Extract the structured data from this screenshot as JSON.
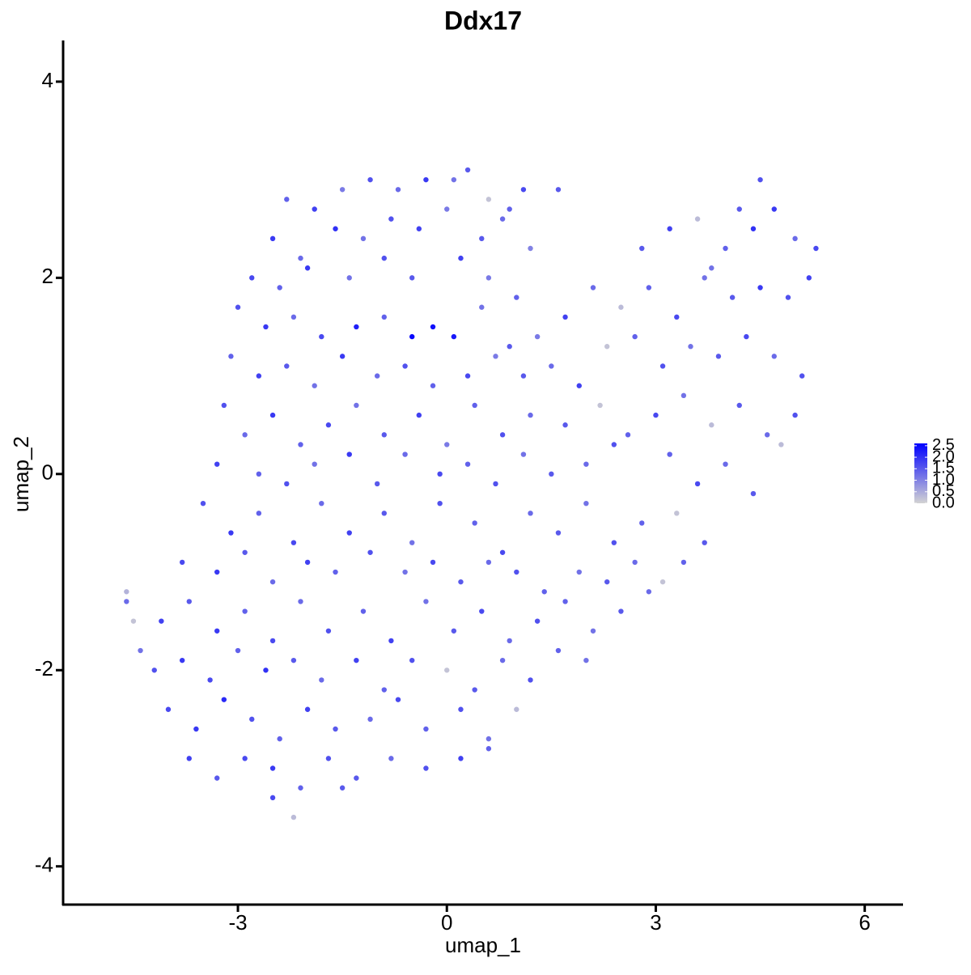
{
  "chart_data": {
    "type": "scatter",
    "title": "Ddx17",
    "x_label": "umap_1",
    "y_label": "umap_2",
    "xlim": [
      -5.51,
      6.55
    ],
    "ylim": [
      -4.39,
      4.42
    ],
    "xticks": [
      -3,
      0,
      3,
      6
    ],
    "yticks": [
      -4,
      -2,
      0,
      2,
      4
    ],
    "low_color": "#d3d3d3",
    "high_color": "#0000ff",
    "colorlim": [
      0,
      2.6
    ],
    "colorticks": [
      {
        "value": 0,
        "label": "0.0"
      },
      0.5,
      {
        "value": 1,
        "label": "1.0"
      },
      1.5,
      {
        "value": 2,
        "label": "2.0"
      },
      2.5
    ],
    "points": [
      [
        -2.3,
        2.8,
        1.4
      ],
      [
        -1.9,
        2.7,
        1.8
      ],
      [
        -1.5,
        2.9,
        1.1
      ],
      [
        -1.1,
        3.0,
        1.6
      ],
      [
        -0.7,
        2.9,
        1.3
      ],
      [
        -0.3,
        3.0,
        1.9
      ],
      [
        0.1,
        3.0,
        1.2
      ],
      [
        0.3,
        3.1,
        1.5
      ],
      [
        0.6,
        2.8,
        0.2
      ],
      [
        0.9,
        2.7,
        1.4
      ],
      [
        1.1,
        2.9,
        1.7
      ],
      [
        1.6,
        2.9,
        1.5
      ],
      [
        -2.5,
        2.4,
        1.9
      ],
      [
        -2.1,
        2.2,
        1.3
      ],
      [
        -1.6,
        2.5,
        2.0
      ],
      [
        -1.2,
        2.4,
        1.2
      ],
      [
        -0.8,
        2.6,
        1.6
      ],
      [
        -0.4,
        2.5,
        1.8
      ],
      [
        0.0,
        2.7,
        1.1
      ],
      [
        0.5,
        2.4,
        1.5
      ],
      [
        0.8,
        2.6,
        1.3
      ],
      [
        1.2,
        2.3,
        1.0
      ],
      [
        -2.8,
        2.0,
        1.7
      ],
      [
        -2.4,
        1.9,
        1.4
      ],
      [
        -2.0,
        2.1,
        1.9
      ],
      [
        -1.4,
        2.0,
        1.2
      ],
      [
        -0.9,
        2.2,
        1.6
      ],
      [
        -0.5,
        2.0,
        1.5
      ],
      [
        0.2,
        2.2,
        1.8
      ],
      [
        0.6,
        2.0,
        1.1
      ],
      [
        1.0,
        1.8,
        1.4
      ],
      [
        -3.0,
        1.7,
        1.6
      ],
      [
        -2.6,
        1.5,
        1.9
      ],
      [
        -2.2,
        1.6,
        1.3
      ],
      [
        -1.8,
        1.4,
        1.7
      ],
      [
        -1.3,
        1.5,
        2.2
      ],
      [
        -0.9,
        1.6,
        1.4
      ],
      [
        -0.5,
        1.4,
        2.5
      ],
      [
        -0.2,
        1.5,
        2.4
      ],
      [
        0.1,
        1.4,
        2.3
      ],
      [
        0.5,
        1.7,
        1.2
      ],
      [
        0.9,
        1.3,
        1.5
      ],
      [
        1.3,
        1.4,
        1.1
      ],
      [
        1.7,
        1.6,
        1.8
      ],
      [
        2.1,
        1.9,
        1.3
      ],
      [
        2.5,
        1.7,
        0.3
      ],
      [
        2.9,
        1.9,
        1.4
      ],
      [
        3.3,
        1.6,
        1.7
      ],
      [
        3.7,
        2.0,
        1.2
      ],
      [
        4.1,
        1.8,
        1.5
      ],
      [
        4.5,
        1.9,
        1.9
      ],
      [
        4.9,
        1.8,
        1.6
      ],
      [
        5.2,
        2.0,
        1.8
      ],
      [
        -3.1,
        1.2,
        1.4
      ],
      [
        -2.7,
        1.0,
        1.8
      ],
      [
        -2.3,
        1.1,
        1.5
      ],
      [
        -1.9,
        0.9,
        1.2
      ],
      [
        -1.5,
        1.2,
        1.9
      ],
      [
        -1.0,
        1.0,
        1.3
      ],
      [
        -0.6,
        1.1,
        1.6
      ],
      [
        -0.2,
        0.9,
        1.4
      ],
      [
        0.3,
        1.0,
        1.7
      ],
      [
        0.7,
        1.2,
        1.1
      ],
      [
        1.1,
        1.0,
        1.5
      ],
      [
        1.5,
        1.1,
        1.3
      ],
      [
        1.9,
        0.9,
        1.8
      ],
      [
        2.3,
        1.3,
        0.2
      ],
      [
        2.7,
        1.4,
        1.4
      ],
      [
        3.1,
        1.1,
        1.6
      ],
      [
        3.5,
        1.3,
        1.2
      ],
      [
        3.9,
        1.2,
        1.5
      ],
      [
        4.3,
        1.4,
        1.7
      ],
      [
        4.7,
        1.2,
        1.3
      ],
      [
        5.1,
        1.0,
        1.6
      ],
      [
        2.8,
        2.3,
        1.5
      ],
      [
        3.2,
        2.5,
        1.8
      ],
      [
        3.6,
        2.6,
        0.3
      ],
      [
        4.0,
        2.3,
        1.4
      ],
      [
        4.4,
        2.5,
        2.0
      ],
      [
        4.5,
        3.0,
        1.6
      ],
      [
        4.7,
        2.7,
        1.9
      ],
      [
        5.0,
        2.4,
        1.3
      ],
      [
        5.3,
        2.3,
        1.7
      ],
      [
        4.2,
        2.7,
        1.5
      ],
      [
        3.8,
        2.1,
        1.2
      ],
      [
        -3.2,
        0.7,
        1.6
      ],
      [
        -2.9,
        0.4,
        1.3
      ],
      [
        -2.5,
        0.6,
        1.9
      ],
      [
        -2.1,
        0.3,
        1.4
      ],
      [
        -1.7,
        0.5,
        1.7
      ],
      [
        -1.3,
        0.7,
        1.2
      ],
      [
        -0.9,
        0.4,
        1.5
      ],
      [
        -0.4,
        0.6,
        1.8
      ],
      [
        0.0,
        0.3,
        1.1
      ],
      [
        0.4,
        0.7,
        1.4
      ],
      [
        0.8,
        0.4,
        1.6
      ],
      [
        1.2,
        0.6,
        1.3
      ],
      [
        1.7,
        0.5,
        1.5
      ],
      [
        2.2,
        0.7,
        0.2
      ],
      [
        2.6,
        0.4,
        1.4
      ],
      [
        3.0,
        0.6,
        1.7
      ],
      [
        3.4,
        0.8,
        1.2
      ],
      [
        3.8,
        0.5,
        0.3
      ],
      [
        4.2,
        0.7,
        1.5
      ],
      [
        4.6,
        0.4,
        1.3
      ],
      [
        5.0,
        0.6,
        1.6
      ],
      [
        -3.3,
        0.1,
        1.8
      ],
      [
        -2.7,
        0.0,
        1.4
      ],
      [
        -2.3,
        -0.1,
        1.6
      ],
      [
        -1.9,
        0.1,
        1.2
      ],
      [
        -1.4,
        0.2,
        1.9
      ],
      [
        -1.0,
        -0.1,
        1.5
      ],
      [
        -0.6,
        0.2,
        1.3
      ],
      [
        -0.1,
        0.0,
        1.7
      ],
      [
        0.3,
        0.1,
        1.4
      ],
      [
        0.7,
        -0.1,
        1.6
      ],
      [
        1.1,
        0.2,
        1.2
      ],
      [
        1.5,
        0.0,
        1.5
      ],
      [
        2.0,
        0.1,
        1.3
      ],
      [
        2.4,
        0.3,
        1.6
      ],
      [
        3.2,
        0.2,
        1.4
      ],
      [
        3.6,
        -0.1,
        1.7
      ],
      [
        4.0,
        0.1,
        1.3
      ],
      [
        4.4,
        -0.2,
        1.5
      ],
      [
        4.8,
        0.3,
        0.3
      ],
      [
        -3.5,
        -0.3,
        1.6
      ],
      [
        -3.1,
        -0.6,
        1.9
      ],
      [
        -2.7,
        -0.4,
        1.4
      ],
      [
        -2.2,
        -0.7,
        1.7
      ],
      [
        -1.8,
        -0.3,
        1.3
      ],
      [
        -1.4,
        -0.6,
        1.8
      ],
      [
        -0.9,
        -0.4,
        1.5
      ],
      [
        -0.5,
        -0.7,
        1.2
      ],
      [
        -0.1,
        -0.3,
        1.6
      ],
      [
        0.4,
        -0.5,
        1.4
      ],
      [
        0.8,
        -0.8,
        1.7
      ],
      [
        1.2,
        -0.4,
        1.3
      ],
      [
        1.6,
        -0.6,
        1.5
      ],
      [
        2.0,
        -0.3,
        1.2
      ],
      [
        2.4,
        -0.7,
        1.6
      ],
      [
        2.8,
        -0.5,
        1.4
      ],
      [
        3.3,
        -0.4,
        0.2
      ],
      [
        3.7,
        -0.7,
        1.5
      ],
      [
        -3.8,
        -0.9,
        1.7
      ],
      [
        -3.3,
        -1.0,
        1.9
      ],
      [
        -2.9,
        -0.8,
        1.5
      ],
      [
        -2.5,
        -1.1,
        1.3
      ],
      [
        -2.0,
        -0.9,
        1.8
      ],
      [
        -1.6,
        -1.0,
        1.4
      ],
      [
        -1.1,
        -0.8,
        1.6
      ],
      [
        -0.6,
        -1.0,
        1.2
      ],
      [
        -0.2,
        -0.9,
        1.7
      ],
      [
        0.2,
        -1.1,
        1.5
      ],
      [
        0.6,
        -0.9,
        1.3
      ],
      [
        1.0,
        -1.0,
        1.6
      ],
      [
        1.4,
        -1.2,
        1.4
      ],
      [
        1.9,
        -1.0,
        1.2
      ],
      [
        2.3,
        -1.1,
        1.5
      ],
      [
        2.7,
        -0.9,
        1.3
      ],
      [
        3.1,
        -1.1,
        0.2
      ],
      [
        3.4,
        -0.9,
        1.4
      ],
      [
        -4.1,
        -1.5,
        1.8
      ],
      [
        -3.7,
        -1.3,
        1.5
      ],
      [
        -3.3,
        -1.6,
        1.9
      ],
      [
        -2.9,
        -1.4,
        1.4
      ],
      [
        -2.5,
        -1.7,
        1.7
      ],
      [
        -2.1,
        -1.3,
        1.3
      ],
      [
        -1.7,
        -1.6,
        1.6
      ],
      [
        -1.2,
        -1.4,
        1.4
      ],
      [
        -0.8,
        -1.7,
        1.8
      ],
      [
        -0.3,
        -1.3,
        1.2
      ],
      [
        0.1,
        -1.6,
        1.5
      ],
      [
        0.5,
        -1.4,
        1.7
      ],
      [
        0.9,
        -1.7,
        1.3
      ],
      [
        1.3,
        -1.5,
        1.6
      ],
      [
        1.7,
        -1.3,
        1.4
      ],
      [
        2.1,
        -1.6,
        1.2
      ],
      [
        2.5,
        -1.4,
        1.5
      ],
      [
        2.9,
        -1.2,
        1.3
      ],
      [
        -4.2,
        -2.0,
        1.6
      ],
      [
        -3.8,
        -1.9,
        1.9
      ],
      [
        -3.4,
        -2.1,
        1.7
      ],
      [
        -3.0,
        -1.8,
        1.4
      ],
      [
        -2.6,
        -2.0,
        2.0
      ],
      [
        -2.2,
        -1.9,
        1.5
      ],
      [
        -1.8,
        -2.1,
        1.3
      ],
      [
        -1.3,
        -1.9,
        1.8
      ],
      [
        -0.9,
        -2.2,
        1.4
      ],
      [
        -0.5,
        -1.9,
        1.6
      ],
      [
        0.0,
        -2.0,
        0.2
      ],
      [
        0.4,
        -2.2,
        1.5
      ],
      [
        0.8,
        -1.9,
        1.3
      ],
      [
        1.2,
        -2.1,
        1.6
      ],
      [
        1.6,
        -1.8,
        1.4
      ],
      [
        2.0,
        -1.9,
        1.2
      ],
      [
        -4.0,
        -2.4,
        1.7
      ],
      [
        -3.6,
        -2.6,
        1.9
      ],
      [
        -3.2,
        -2.3,
        2.1
      ],
      [
        -2.8,
        -2.5,
        1.6
      ],
      [
        -2.4,
        -2.7,
        1.4
      ],
      [
        -2.0,
        -2.4,
        1.8
      ],
      [
        -1.6,
        -2.6,
        1.5
      ],
      [
        -1.1,
        -2.5,
        1.3
      ],
      [
        -0.7,
        -2.3,
        1.7
      ],
      [
        -0.3,
        -2.6,
        1.4
      ],
      [
        0.2,
        -2.4,
        1.6
      ],
      [
        0.6,
        -2.7,
        1.2
      ],
      [
        1.0,
        -2.4,
        0.3
      ],
      [
        -3.7,
        -2.9,
        1.8
      ],
      [
        -3.3,
        -3.1,
        1.5
      ],
      [
        -2.9,
        -2.9,
        1.7
      ],
      [
        -2.5,
        -3.0,
        1.9
      ],
      [
        -2.1,
        -3.2,
        1.4
      ],
      [
        -1.7,
        -2.9,
        1.6
      ],
      [
        -1.3,
        -3.1,
        1.5
      ],
      [
        -0.8,
        -2.9,
        1.3
      ],
      [
        -0.3,
        -3.0,
        1.6
      ],
      [
        0.2,
        -2.9,
        1.8
      ],
      [
        0.6,
        -2.8,
        1.4
      ],
      [
        -2.5,
        -3.3,
        1.7
      ],
      [
        -2.2,
        -3.5,
        0.3
      ],
      [
        -1.5,
        -3.2,
        1.5
      ],
      [
        -4.6,
        -1.2,
        0.4
      ],
      [
        -4.6,
        -1.3,
        1.3
      ],
      [
        -4.5,
        -1.5,
        0.2
      ],
      [
        -4.4,
        -1.8,
        1.2
      ]
    ]
  }
}
